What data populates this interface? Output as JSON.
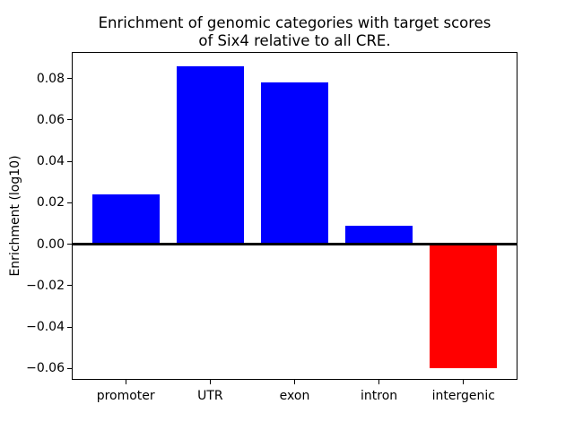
{
  "figure": {
    "background_color": "#ffffff",
    "text_color": "#000000"
  },
  "chart_data": {
    "type": "bar",
    "title": "Enrichment of genomic categories with target scores of Six4 relative to all CRE.",
    "title_line1": "Enrichment of genomic categories with target scores",
    "title_line2": "of Six4 relative to all CRE.",
    "xlabel": "",
    "ylabel": "Enrichment (log10)",
    "categories": [
      "promoter",
      "UTR",
      "exon",
      "intron",
      "intergenic"
    ],
    "values": [
      0.024,
      0.086,
      0.078,
      0.009,
      -0.06
    ],
    "bar_colors": [
      "#0000ff",
      "#0000ff",
      "#0000ff",
      "#0000ff",
      "#ff0000"
    ],
    "positive_color": "#0000ff",
    "negative_color": "#ff0000",
    "bar_width": 0.8,
    "xlim": [
      -0.64,
      4.64
    ],
    "ylim": [
      -0.0655,
      0.0928
    ],
    "yticks": [
      0.08,
      0.06,
      0.04,
      0.02,
      0.0,
      -0.02,
      -0.04,
      -0.06
    ],
    "ytick_labels": [
      "0.08",
      "0.06",
      "0.04",
      "0.02",
      "0.00",
      "−0.02",
      "−0.04",
      "−0.06"
    ],
    "zero_line": true,
    "zero_line_color": "#000000",
    "grid": false,
    "legend": null
  }
}
